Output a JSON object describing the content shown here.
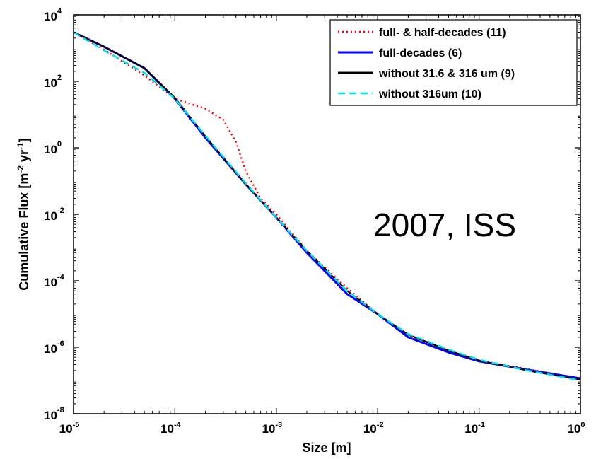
{
  "chart_data": {
    "type": "line",
    "xlabel": "Size [m]",
    "ylabel": "Cumulative Flux [m-2 yr-1]",
    "ylabel_parts": [
      "Cumulative Flux [m",
      "-2",
      " yr",
      "-1",
      "]"
    ],
    "xscale": "log",
    "yscale": "log",
    "xlim": [
      1e-05,
      1
    ],
    "ylim": [
      1e-08,
      10000.0
    ],
    "grid": false,
    "legend_position": "top-right",
    "x_ticks": [
      {
        "base": "10",
        "exp": "-5",
        "value": 1e-05
      },
      {
        "base": "10",
        "exp": "-4",
        "value": 0.0001
      },
      {
        "base": "10",
        "exp": "-3",
        "value": 0.001
      },
      {
        "base": "10",
        "exp": "-2",
        "value": 0.01
      },
      {
        "base": "10",
        "exp": "-1",
        "value": 0.1
      },
      {
        "base": "10",
        "exp": "0",
        "value": 1
      }
    ],
    "y_ticks": [
      {
        "base": "10",
        "exp": "4",
        "value": 10000.0
      },
      {
        "base": "10",
        "exp": "2",
        "value": 100.0
      },
      {
        "base": "10",
        "exp": "0",
        "value": 1
      },
      {
        "base": "10",
        "exp": "-2",
        "value": 0.01
      },
      {
        "base": "10",
        "exp": "-4",
        "value": 0.0001
      },
      {
        "base": "10",
        "exp": "-6",
        "value": 1e-06
      },
      {
        "base": "10",
        "exp": "-8",
        "value": 1e-08
      }
    ],
    "annotation": "2007, ISS",
    "series": [
      {
        "name": "full- & half-decades (11)",
        "color": "#ff0000",
        "style": "dotted",
        "x": [
          1e-05,
          2e-05,
          5e-05,
          0.0001,
          0.0002,
          0.0003,
          0.0004,
          0.0005,
          0.0007,
          0.001,
          0.002,
          0.005,
          0.01,
          0.02,
          0.05,
          0.1,
          0.3,
          1
        ],
        "y": [
          3000,
          900,
          150,
          30,
          15,
          7,
          1.5,
          0.2,
          0.03,
          0.01,
          0.0008,
          6e-05,
          1e-05,
          2.2e-06,
          8e-07,
          4e-07,
          2.2e-07,
          1.15e-07
        ]
      },
      {
        "name": "full-decades (6)",
        "color": "#0000ff",
        "style": "solid",
        "x": [
          1e-05,
          2e-05,
          5e-05,
          0.0001,
          0.0002,
          0.0005,
          0.001,
          0.002,
          0.005,
          0.01,
          0.02,
          0.05,
          0.1,
          0.3,
          1
        ],
        "y": [
          3000,
          1100,
          250,
          30,
          2,
          0.08,
          0.008,
          0.0007,
          4e-05,
          1e-05,
          2e-06,
          7e-07,
          3.8e-07,
          2.1e-07,
          1.15e-07
        ]
      },
      {
        "name": "without 31.6 & 316 um (9)",
        "color": "#000000",
        "style": "solid",
        "x": [
          1e-05,
          2e-05,
          5e-05,
          0.0001,
          0.0002,
          0.0005,
          0.001,
          0.002,
          0.005,
          0.01,
          0.02,
          0.05,
          0.1,
          0.3,
          1
        ],
        "y": [
          3000,
          1100,
          250,
          32,
          2.2,
          0.08,
          0.008,
          0.0008,
          5e-05,
          1e-05,
          2.4e-06,
          8e-07,
          4e-07,
          2e-07,
          1.05e-07
        ]
      },
      {
        "name": "without 316um (10)",
        "color": "#00e0e8",
        "style": "dashed",
        "x": [
          1e-05,
          2e-05,
          5e-05,
          0.0001,
          0.0002,
          0.0005,
          0.001,
          0.002,
          0.005,
          0.01,
          0.02,
          0.05,
          0.1,
          0.3,
          1
        ],
        "y": [
          3000,
          850,
          180,
          30,
          2.3,
          0.085,
          0.008,
          0.0008,
          5e-05,
          1e-05,
          2.5e-06,
          8.5e-07,
          4.2e-07,
          2e-07,
          1e-07
        ]
      }
    ]
  }
}
